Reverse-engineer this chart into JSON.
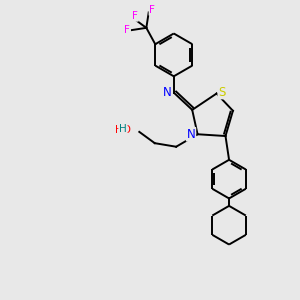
{
  "background_color": "#e8e8e8",
  "atom_colors": {
    "N": "#0000ff",
    "S": "#cccc00",
    "O": "#ff0000",
    "F": "#ff00ff",
    "C": "#000000",
    "H": "#008080"
  },
  "bond_color": "#000000",
  "line_width": 1.4,
  "dbo": 0.08
}
